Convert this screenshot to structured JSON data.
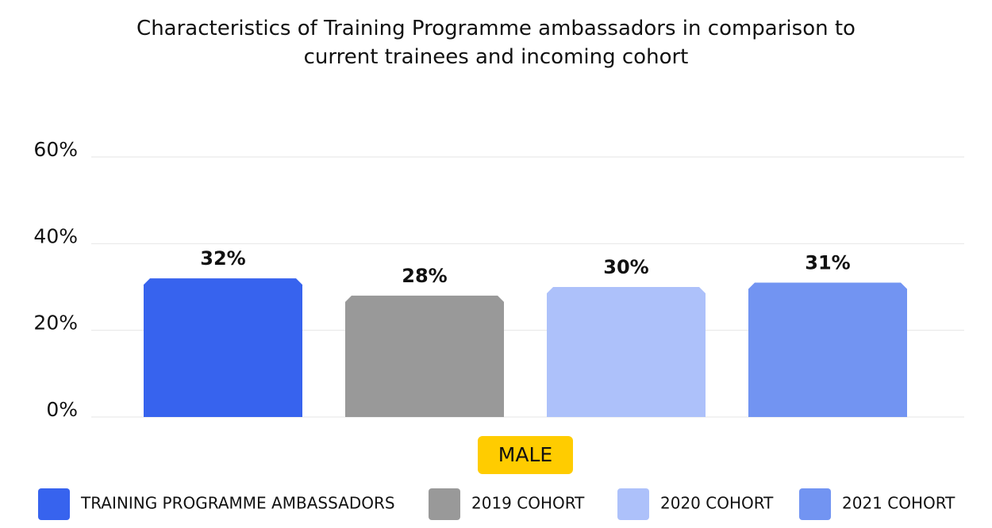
{
  "chart_data": {
    "type": "bar",
    "title": "Characteristics of Training Programme ambassadors in comparison to current trainees and incoming cohort",
    "categories": [
      "MALE"
    ],
    "series": [
      {
        "name": "TRAINING PROGRAMME AMBASSADORS",
        "color": "#3763ee",
        "values": [
          32
        ],
        "value_labels": [
          "32%"
        ]
      },
      {
        "name": "2019 COHORT",
        "color": "#999999",
        "values": [
          28
        ],
        "value_labels": [
          "28%"
        ]
      },
      {
        "name": "2020 COHORT",
        "color": "#adc1fa",
        "values": [
          30
        ],
        "value_labels": [
          "30%"
        ]
      },
      {
        "name": "2021 COHORT",
        "color": "#7294f2",
        "values": [
          31
        ],
        "value_labels": [
          "31%"
        ]
      }
    ],
    "ylim": [
      0,
      60
    ],
    "yticks": [
      {
        "value": 0,
        "label": "0%"
      },
      {
        "value": 20,
        "label": "20%"
      },
      {
        "value": 40,
        "label": "40%"
      },
      {
        "value": 60,
        "label": "60%"
      }
    ],
    "grid": true,
    "legend": "bottom",
    "category_color": "#ffcc00"
  }
}
